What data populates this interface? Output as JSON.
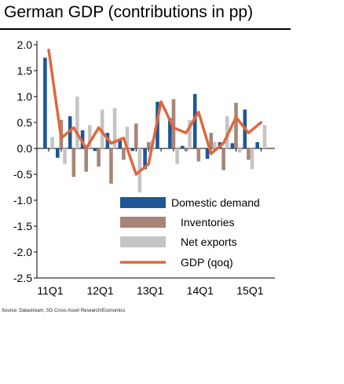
{
  "header": {
    "title": "German GDP (contributions in pp)"
  },
  "footer": {
    "source": "Source: Datastream, SG Cross Asset Research/Economics"
  },
  "colors": {
    "domestic": "#1f5696",
    "inventories": "#a88577",
    "net_exports": "#c4c4c4",
    "gdp": "#e0673f"
  },
  "chart_data": {
    "type": "bar",
    "title": "German GDP (contributions in pp)",
    "xlabel": "",
    "ylabel": "",
    "ylim": [
      -2.5,
      2.0
    ],
    "yticks": [
      2.0,
      1.5,
      1.0,
      0.5,
      0.0,
      -0.5,
      -1.0,
      -1.5,
      -2.0,
      -2.5
    ],
    "ytick_labels": [
      "2.0",
      "1.5",
      "1.0",
      "0.5",
      "0.0",
      "-0.5",
      "-1.0",
      "-1.5",
      "-2.0",
      "-2.5"
    ],
    "categories": [
      "11Q1",
      "11Q2",
      "11Q3",
      "11Q4",
      "12Q1",
      "12Q2",
      "12Q3",
      "12Q4",
      "13Q1",
      "13Q2",
      "13Q3",
      "13Q4",
      "14Q1",
      "14Q2",
      "14Q3",
      "14Q4",
      "15Q1",
      "15Q2"
    ],
    "xtick_labels": [
      {
        "index": 0,
        "label": "11Q1"
      },
      {
        "index": 4,
        "label": "12Q1"
      },
      {
        "index": 8,
        "label": "13Q1"
      },
      {
        "index": 12,
        "label": "14Q1"
      },
      {
        "index": 16,
        "label": "15Q1"
      }
    ],
    "series": [
      {
        "name": "Domestic demand",
        "kind": "bar",
        "color": "#1f5696",
        "values": [
          1.75,
          -0.18,
          0.62,
          0.35,
          -0.05,
          0.3,
          0.15,
          -0.05,
          -0.4,
          0.9,
          0.58,
          0.05,
          1.05,
          -0.2,
          0.12,
          0.1,
          0.75,
          0.12
        ]
      },
      {
        "name": "Inventories",
        "kind": "bar",
        "color": "#a88577",
        "values": [
          0.0,
          0.55,
          -0.55,
          -0.45,
          -0.35,
          -0.68,
          -0.22,
          0.48,
          0.12,
          0.0,
          0.95,
          -0.05,
          -0.25,
          0.3,
          -0.42,
          0.88,
          -0.22,
          0.0
        ]
      },
      {
        "name": "Net exports",
        "kind": "bar",
        "color": "#c4c4c4",
        "values": [
          0.22,
          -0.3,
          1.0,
          0.45,
          0.75,
          0.78,
          0.42,
          -0.95,
          0.15,
          0.0,
          -0.3,
          0.55,
          0.0,
          0.12,
          0.62,
          -0.08,
          -0.4,
          0.45
        ]
      },
      {
        "name": "GDP (qoq)",
        "kind": "line",
        "color": "#e0673f",
        "values": [
          1.9,
          0.2,
          0.4,
          0.0,
          0.4,
          0.1,
          0.2,
          -0.5,
          -0.3,
          0.9,
          0.4,
          0.3,
          0.7,
          -0.1,
          0.1,
          0.6,
          0.3,
          0.5
        ]
      }
    ],
    "legend": {
      "placement": "lower-right",
      "entries": [
        "Domestic demand",
        "Inventories",
        "Net exports",
        "GDP (qoq)"
      ]
    },
    "grid": false
  }
}
